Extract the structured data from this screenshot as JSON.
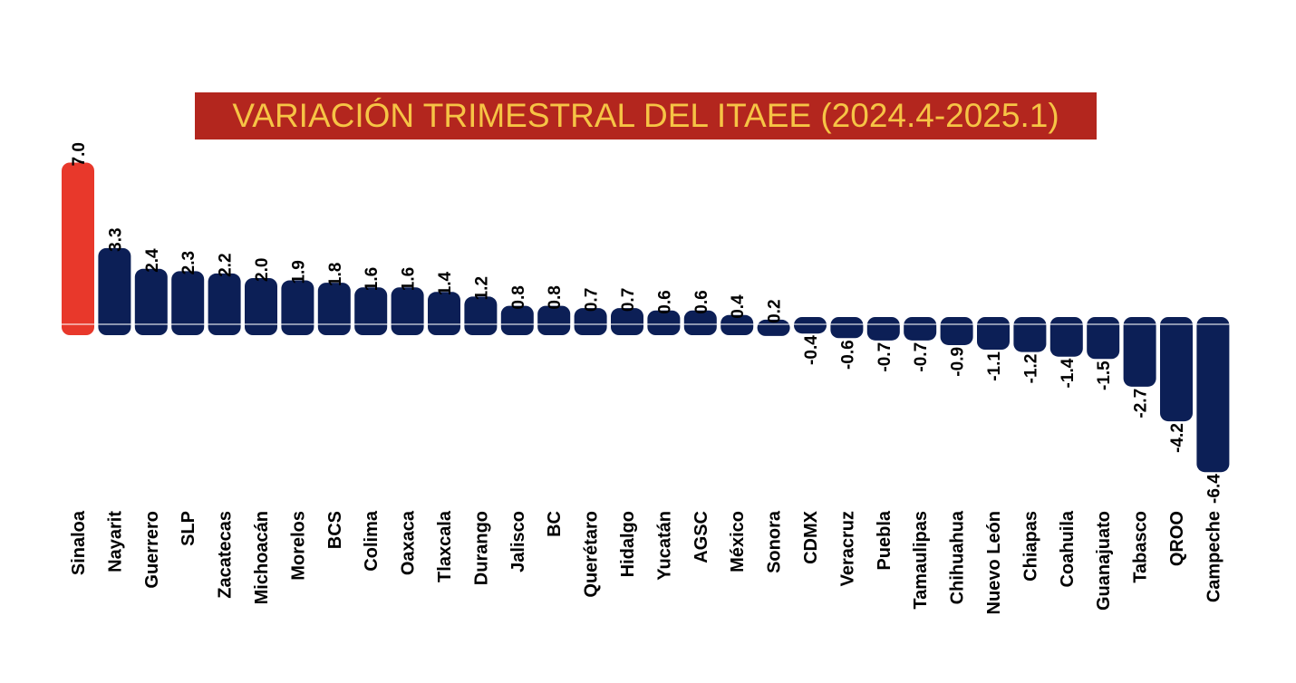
{
  "chart_data": {
    "type": "bar",
    "title": "VARIACIÓN TRIMESTRAL DEL ITAEE (2024.4-2025.1)",
    "categories": [
      "Sinaloa",
      "Nayarit",
      "Guerrero",
      "SLP",
      "Zacatecas",
      "Michoacán",
      "Morelos",
      "BCS",
      "Colima",
      "Oaxaca",
      "Tlaxcala",
      "Durango",
      "Jalisco",
      "BC",
      "Querétaro",
      "Hidalgo",
      "Yucatán",
      "AGSC",
      "México",
      "Sonora",
      "CDMX",
      "Veracruz",
      "Puebla",
      "Tamaulipas",
      "Chihuahua",
      "Nuevo León",
      "Chiapas",
      "Coahuila",
      "Guanajuato",
      "Tabasco",
      "QROO",
      "Campeche"
    ],
    "values": [
      7.0,
      3.3,
      2.4,
      2.3,
      2.2,
      2.0,
      1.9,
      1.8,
      1.6,
      1.6,
      1.4,
      1.2,
      0.8,
      0.8,
      0.7,
      0.7,
      0.6,
      0.6,
      0.4,
      0.2,
      -0.4,
      -0.6,
      -0.7,
      -0.7,
      -0.9,
      -1.1,
      -1.2,
      -1.4,
      -1.5,
      -2.7,
      -4.2,
      -6.4
    ],
    "value_labels": [
      "7.0",
      "3.3",
      "2.4",
      "2.3",
      "2.2",
      "2.0",
      "1.9",
      "1.8",
      "1.6",
      "1.6",
      "1.4",
      "1.2",
      "0.8",
      "0.8",
      "0.7",
      "0.7",
      "0.6",
      "0.6",
      "0.4",
      "0.2",
      "-0.4",
      "-0.6",
      "-0.7",
      "-0.7",
      "-0.9",
      "-1.1",
      "-1.2",
      "-1.4",
      "-1.5",
      "-2.7",
      "-4.2",
      "-6.4"
    ],
    "highlight_index": 0,
    "colors": {
      "highlight": "#e8382b",
      "bar": "#0c1f56",
      "title_bg": "#b3261e",
      "title_text": "#f6c445"
    },
    "xlabel": "",
    "ylabel": "",
    "grid": false,
    "legend": "none"
  }
}
